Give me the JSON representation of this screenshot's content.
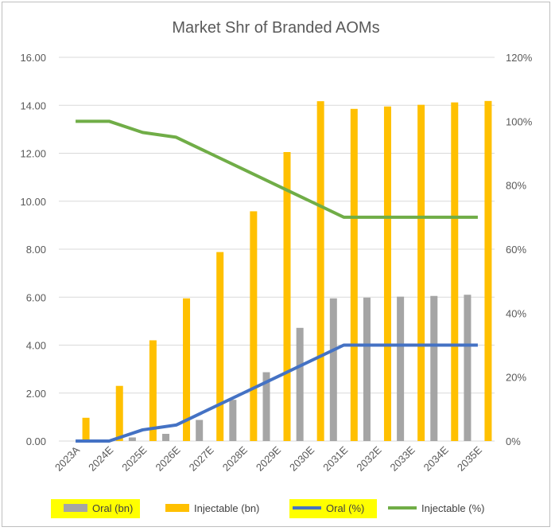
{
  "chart_data": {
    "type": "bar",
    "title": "Market Shr of Branded AOMs",
    "categories": [
      "2023A",
      "2024E",
      "2025E",
      "2026E",
      "2027E",
      "2028E",
      "2029E",
      "2030E",
      "2031E",
      "2032E",
      "2033E",
      "2034E",
      "2035E"
    ],
    "y_left": {
      "ylim": [
        0,
        16
      ],
      "ticks": [
        "0.00",
        "2.00",
        "4.00",
        "6.00",
        "8.00",
        "10.00",
        "12.00",
        "14.00",
        "16.00"
      ]
    },
    "y_right": {
      "ylim": [
        0,
        1.2
      ],
      "ticks": [
        "0%",
        "20%",
        "40%",
        "60%",
        "80%",
        "100%",
        "120%"
      ]
    },
    "grid": true,
    "legend_position": "bottom",
    "series": [
      {
        "name": "Oral (bn)",
        "type": "bar",
        "axis": "left",
        "color": "#a5a5a5",
        "values": [
          0,
          0,
          0.15,
          0.3,
          0.88,
          1.72,
          2.87,
          4.72,
          5.95,
          5.98,
          6.02,
          6.05,
          6.1
        ]
      },
      {
        "name": "Injectable (bn)",
        "type": "bar",
        "axis": "left",
        "color": "#ffc000",
        "values": [
          0.97,
          2.3,
          4.2,
          5.95,
          7.88,
          9.58,
          12.05,
          14.17,
          13.85,
          13.95,
          14.02,
          14.12,
          14.18
        ]
      },
      {
        "name": "Oral (%)",
        "type": "line",
        "axis": "right",
        "color": "#4472c4",
        "values": [
          0,
          0,
          0.035,
          0.05,
          0.1,
          0.15,
          0.2,
          0.25,
          0.3,
          0.3,
          0.3,
          0.3,
          0.3
        ]
      },
      {
        "name": "Injectable (%)",
        "type": "line",
        "axis": "right",
        "color": "#70ad47",
        "values": [
          1.0,
          1.0,
          0.965,
          0.95,
          0.9,
          0.85,
          0.8,
          0.75,
          0.7,
          0.7,
          0.7,
          0.7,
          0.7
        ]
      }
    ],
    "legend_highlight_color": "#ffff00"
  }
}
